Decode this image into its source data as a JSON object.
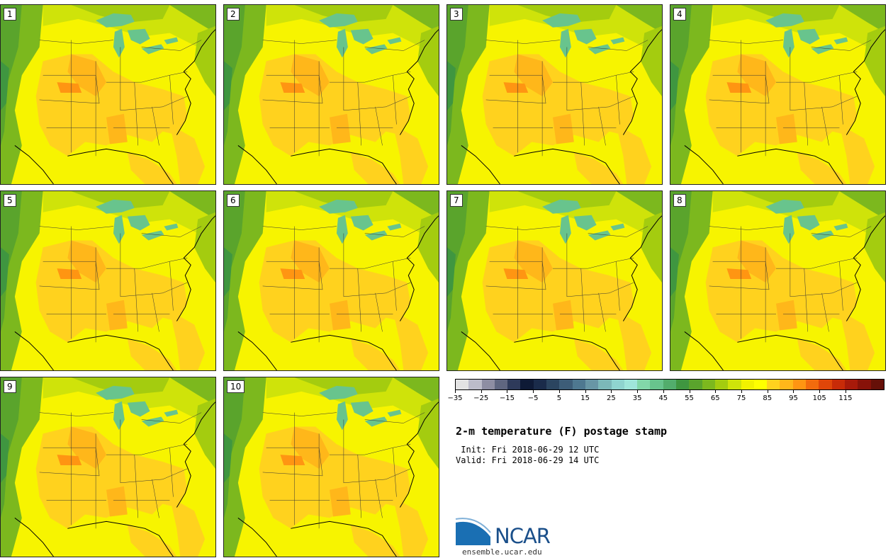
{
  "panels": [
    {
      "label": "1"
    },
    {
      "label": "2"
    },
    {
      "label": "3"
    },
    {
      "label": "4"
    },
    {
      "label": "5"
    },
    {
      "label": "6"
    },
    {
      "label": "7"
    },
    {
      "label": "8"
    },
    {
      "label": "9"
    },
    {
      "label": "10"
    }
  ],
  "colorbar": {
    "colors": [
      "#e3e3e3",
      "#bcbcca",
      "#8e8ea3",
      "#5f6680",
      "#2e3a5a",
      "#0e1a36",
      "#1a2b4a",
      "#2b4560",
      "#3d5d78",
      "#4e7890",
      "#6896a5",
      "#7cb8b9",
      "#8fd4cf",
      "#9fe6da",
      "#82d7a9",
      "#68c48d",
      "#52ad6c",
      "#3f9640",
      "#5aa42c",
      "#7cb81e",
      "#a4cc0f",
      "#cfe30a",
      "#f2f200",
      "#ffff00",
      "#ffd21e",
      "#ffb71a",
      "#ff9512",
      "#f26b0d",
      "#e04609",
      "#c82b08",
      "#a81a0a",
      "#871209",
      "#661008"
    ],
    "tick_labels": [
      "−35",
      "−25",
      "−15",
      "−5",
      "5",
      "15",
      "25",
      "35",
      "45",
      "55",
      "65",
      "75",
      "85",
      "95",
      "105",
      "115"
    ]
  },
  "title": "2-m temperature (F) postage stamp",
  "init": " Init: Fri 2018-06-29 12 UTC",
  "valid": "Valid: Fri 2018-06-29 14 UTC",
  "logo": {
    "name": "NCAR",
    "url": "ensemble.ucar.edu"
  }
}
